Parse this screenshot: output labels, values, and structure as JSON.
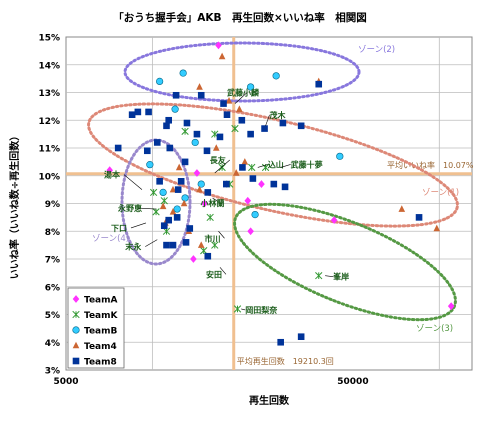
{
  "chart_data": {
    "type": "scatter",
    "title": "「おうち握手会」AKB　再生回数×いいね率　相関図",
    "xlabel": "再生回数",
    "ylabel": "いいね率（いいね数÷再生回数）",
    "x_scale": "log",
    "xlim": [
      5000,
      130000
    ],
    "ylim": [
      3,
      15
    ],
    "x_ticks": [
      "5000",
      "50000"
    ],
    "y_ticks": [
      "3%",
      "4%",
      "5%",
      "6%",
      "7%",
      "8%",
      "9%",
      "10%",
      "11%",
      "12%",
      "13%",
      "14%",
      "15%"
    ],
    "grid": true,
    "legend_position": "bottom-left",
    "reference_lines": {
      "avg_like_rate": {
        "value": 10.07,
        "label": "平均いいね率　10.07%"
      },
      "avg_plays": {
        "value": 19210.3,
        "label": "平均再生回数　19210.3回"
      }
    },
    "zone_labels": [
      "ゾーン(1)",
      "ゾーン(2)",
      "ゾーン(3)",
      "ゾーン(4)"
    ],
    "series": [
      {
        "name": "TeamA",
        "color": "#ff33ff",
        "marker": "diamond",
        "points": [
          [
            17000,
            14.7
          ],
          [
            7100,
            10.2
          ],
          [
            14300,
            10.1
          ],
          [
            15200,
            9.0
          ],
          [
            13900,
            7.0
          ],
          [
            22000,
            8.0
          ],
          [
            21500,
            9.1
          ],
          [
            24000,
            9.7
          ],
          [
            43000,
            8.4
          ],
          [
            110000,
            5.3
          ]
        ]
      },
      {
        "name": "TeamK",
        "color": "#339933",
        "marker": "x",
        "points": [
          [
            13000,
            11.6
          ],
          [
            16500,
            11.5
          ],
          [
            19400,
            11.7
          ],
          [
            17500,
            10.3
          ],
          [
            22200,
            10.3
          ],
          [
            24800,
            10.3
          ],
          [
            18600,
            9.7
          ],
          [
            10100,
            9.4
          ],
          [
            11000,
            9.1
          ],
          [
            10300,
            8.7
          ],
          [
            15900,
            8.5
          ],
          [
            11200,
            8.0
          ],
          [
            16500,
            7.5
          ],
          [
            15100,
            7.3
          ],
          [
            19800,
            5.2
          ],
          [
            38000,
            6.4
          ]
        ]
      },
      {
        "name": "TeamB",
        "color": "#33ccff",
        "marker": "circle",
        "points": [
          [
            10600,
            13.4
          ],
          [
            12800,
            13.7
          ],
          [
            22000,
            13.2
          ],
          [
            27000,
            13.6
          ],
          [
            12000,
            12.4
          ],
          [
            14100,
            11.2
          ],
          [
            9800,
            10.4
          ],
          [
            10900,
            9.4
          ],
          [
            13000,
            9.2
          ],
          [
            12200,
            8.8
          ],
          [
            14800,
            9.7
          ],
          [
            22800,
            8.6
          ],
          [
            45000,
            10.7
          ]
        ]
      },
      {
        "name": "Team4",
        "color": "#cc6633",
        "marker": "triangle",
        "points": [
          [
            17500,
            14.3
          ],
          [
            14600,
            13.2
          ],
          [
            18500,
            12.7
          ],
          [
            20100,
            12.4
          ],
          [
            16700,
            11.0
          ],
          [
            21000,
            10.5
          ],
          [
            12400,
            10.3
          ],
          [
            19600,
            10.1
          ],
          [
            14600,
            9.5
          ],
          [
            11800,
            9.5
          ],
          [
            10900,
            8.9
          ],
          [
            12900,
            9.0
          ],
          [
            11800,
            8.7
          ],
          [
            11100,
            8.3
          ],
          [
            13400,
            8.0
          ],
          [
            14800,
            7.5
          ],
          [
            38000,
            13.4
          ],
          [
            74000,
            8.8
          ],
          [
            98000,
            8.1
          ]
        ]
      },
      {
        "name": "Team8",
        "color": "#003399",
        "marker": "square",
        "points": [
          [
            38000,
            13.3
          ],
          [
            12100,
            12.9
          ],
          [
            14800,
            12.9
          ],
          [
            8500,
            12.2
          ],
          [
            8900,
            12.3
          ],
          [
            9700,
            12.3
          ],
          [
            11400,
            12.0
          ],
          [
            11200,
            11.8
          ],
          [
            13200,
            11.9
          ],
          [
            14300,
            11.5
          ],
          [
            17700,
            12.6
          ],
          [
            18200,
            12.2
          ],
          [
            20500,
            12.0
          ],
          [
            22000,
            11.5
          ],
          [
            24600,
            11.7
          ],
          [
            28500,
            11.9
          ],
          [
            33000,
            11.8
          ],
          [
            10400,
            11.2
          ],
          [
            11500,
            11.0
          ],
          [
            7600,
            11.0
          ],
          [
            9600,
            10.9
          ],
          [
            13000,
            10.5
          ],
          [
            15500,
            10.9
          ],
          [
            17200,
            11.4
          ],
          [
            12600,
            9.8
          ],
          [
            12300,
            9.5
          ],
          [
            10600,
            9.8
          ],
          [
            18100,
            9.7
          ],
          [
            20600,
            10.3
          ],
          [
            22400,
            9.9
          ],
          [
            26500,
            9.7
          ],
          [
            29000,
            9.6
          ],
          [
            15600,
            9.4
          ],
          [
            11400,
            8.4
          ],
          [
            12200,
            8.5
          ],
          [
            11000,
            8.2
          ],
          [
            13500,
            8.1
          ],
          [
            11200,
            7.5
          ],
          [
            11800,
            7.5
          ],
          [
            13100,
            7.6
          ],
          [
            15600,
            7.1
          ],
          [
            85000,
            8.5
          ],
          [
            28000,
            4.0
          ],
          [
            33000,
            4.2
          ]
        ]
      }
    ],
    "annotations": [
      {
        "text": "武藤小麟",
        "x": 19400,
        "y": 12.6
      },
      {
        "text": "茂木",
        "x": 24800,
        "y": 11.8
      },
      {
        "text": "込山",
        "x": 23300,
        "y": 10.3
      },
      {
        "text": "武藤十夢",
        "x": 28000,
        "y": 10.3
      },
      {
        "text": "長友",
        "x": 16500,
        "y": 10.1
      },
      {
        "text": "小林蘭",
        "x": 16200,
        "y": 9.2
      },
      {
        "text": "湯本",
        "x": 9200,
        "y": 9.5
      },
      {
        "text": "永野恵",
        "x": 10300,
        "y": 8.8
      },
      {
        "text": "下口",
        "x": 9500,
        "y": 8.3
      },
      {
        "text": "末永",
        "x": 10400,
        "y": 7.7
      },
      {
        "text": "市川",
        "x": 17000,
        "y": 8.0
      },
      {
        "text": "安田",
        "x": 17200,
        "y": 6.7
      },
      {
        "text": "峯岸",
        "x": 40000,
        "y": 6.4
      },
      {
        "text": "岡田梨奈",
        "x": 20400,
        "y": 5.2
      }
    ]
  }
}
